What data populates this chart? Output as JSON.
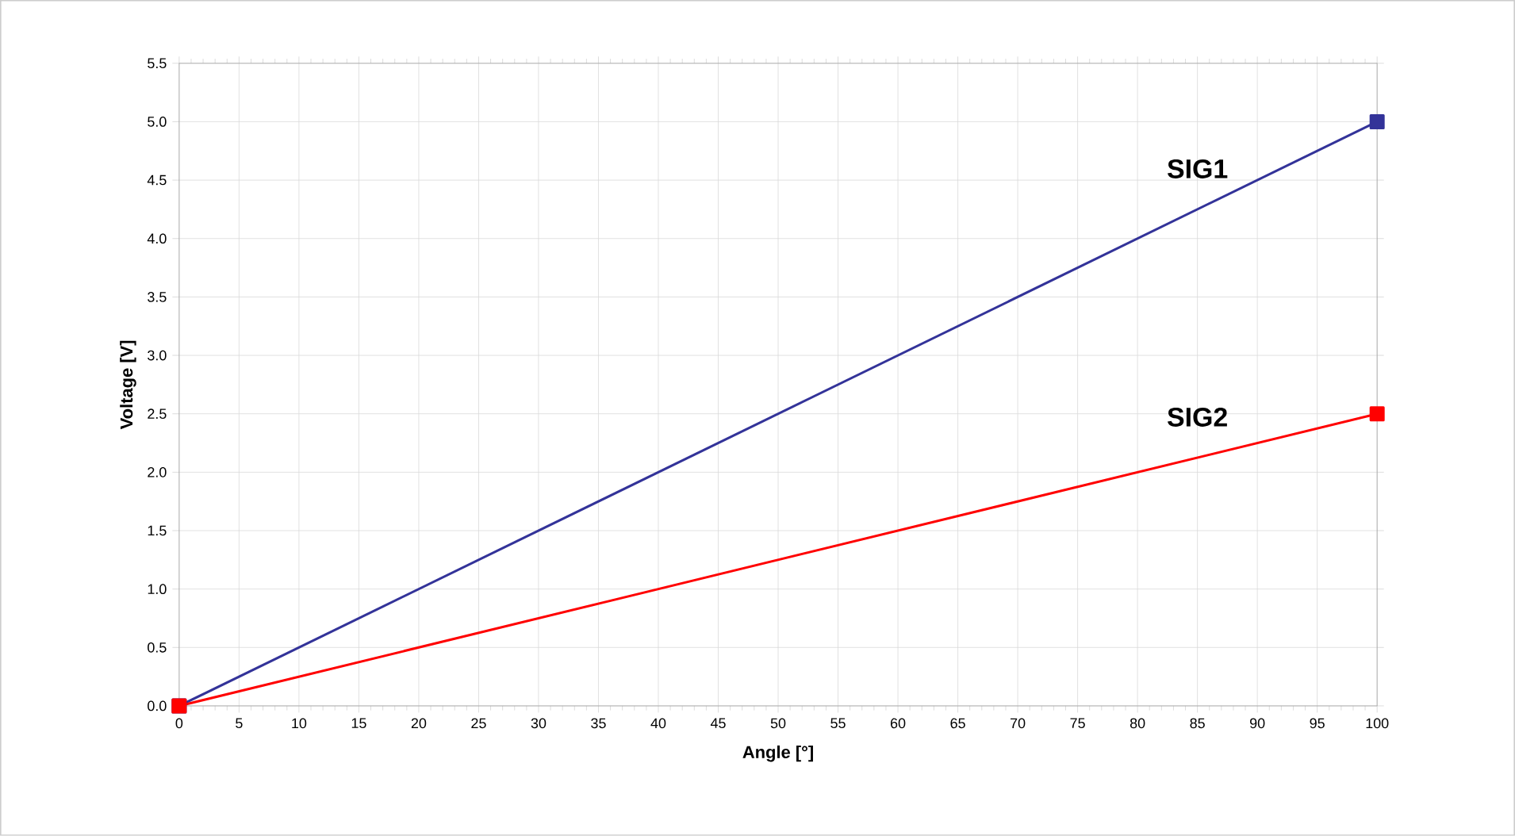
{
  "chart_data": {
    "type": "line",
    "xlabel": "Angle [°]",
    "ylabel": "Voltage [V]",
    "x": [
      0,
      100
    ],
    "series": [
      {
        "name": "SIG1",
        "color": "#333399",
        "values": [
          0,
          5.0
        ]
      },
      {
        "name": "SIG2",
        "color": "#ff0000",
        "values": [
          0,
          2.5
        ]
      }
    ],
    "xlim": [
      0,
      100
    ],
    "xticks": [
      0,
      5,
      10,
      15,
      20,
      25,
      30,
      35,
      40,
      45,
      50,
      55,
      60,
      65,
      70,
      75,
      80,
      85,
      90,
      95,
      100
    ],
    "ylim": [
      0,
      5.5
    ],
    "yticks": [
      {
        "value": 0,
        "label": "0.0"
      },
      {
        "value": 0.5,
        "label": "0.5"
      },
      {
        "value": 1,
        "label": "1.0"
      },
      {
        "value": 1.5,
        "label": "1.5"
      },
      {
        "value": 2,
        "label": "2.0"
      },
      {
        "value": 2.5,
        "label": "2.5"
      },
      {
        "value": 3,
        "label": "3.0"
      },
      {
        "value": 3.5,
        "label": "3.5"
      },
      {
        "value": 4,
        "label": "4.0"
      },
      {
        "value": 4.5,
        "label": "4.5"
      },
      {
        "value": 5,
        "label": "5.0"
      },
      {
        "value": 5.5,
        "label": "5.5"
      }
    ],
    "grid": true,
    "marker": "square",
    "line_style": "solid"
  }
}
